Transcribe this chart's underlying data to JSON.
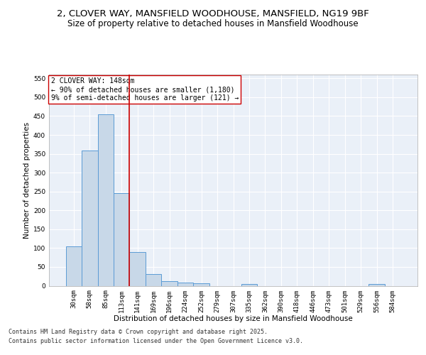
{
  "title": "2, CLOVER WAY, MANSFIELD WOODHOUSE, MANSFIELD, NG19 9BF",
  "subtitle": "Size of property relative to detached houses in Mansfield Woodhouse",
  "xlabel": "Distribution of detached houses by size in Mansfield Woodhouse",
  "ylabel": "Number of detached properties",
  "categories": [
    "30sqm",
    "58sqm",
    "85sqm",
    "113sqm",
    "141sqm",
    "169sqm",
    "196sqm",
    "224sqm",
    "252sqm",
    "279sqm",
    "307sqm",
    "335sqm",
    "362sqm",
    "390sqm",
    "418sqm",
    "446sqm",
    "473sqm",
    "501sqm",
    "529sqm",
    "556sqm",
    "584sqm"
  ],
  "values": [
    105,
    358,
    455,
    246,
    90,
    32,
    13,
    9,
    6,
    0,
    0,
    4,
    0,
    0,
    0,
    0,
    0,
    0,
    0,
    5,
    0
  ],
  "bar_color": "#c8d8e8",
  "bar_edge_color": "#5b9bd5",
  "vline_x_idx": 4,
  "vline_color": "#cc0000",
  "annotation_lines": [
    "2 CLOVER WAY: 148sqm",
    "← 90% of detached houses are smaller (1,180)",
    "9% of semi-detached houses are larger (121) →"
  ],
  "annotation_box_color": "#cc0000",
  "ylim": [
    0,
    560
  ],
  "yticks": [
    0,
    50,
    100,
    150,
    200,
    250,
    300,
    350,
    400,
    450,
    500,
    550
  ],
  "background_color": "#eaf0f8",
  "grid_color": "#ffffff",
  "footer_line1": "Contains HM Land Registry data © Crown copyright and database right 2025.",
  "footer_line2": "Contains public sector information licensed under the Open Government Licence v3.0.",
  "title_fontsize": 9.5,
  "subtitle_fontsize": 8.5,
  "axis_label_fontsize": 7.5,
  "tick_fontsize": 6.5,
  "annotation_fontsize": 7,
  "footer_fontsize": 6
}
